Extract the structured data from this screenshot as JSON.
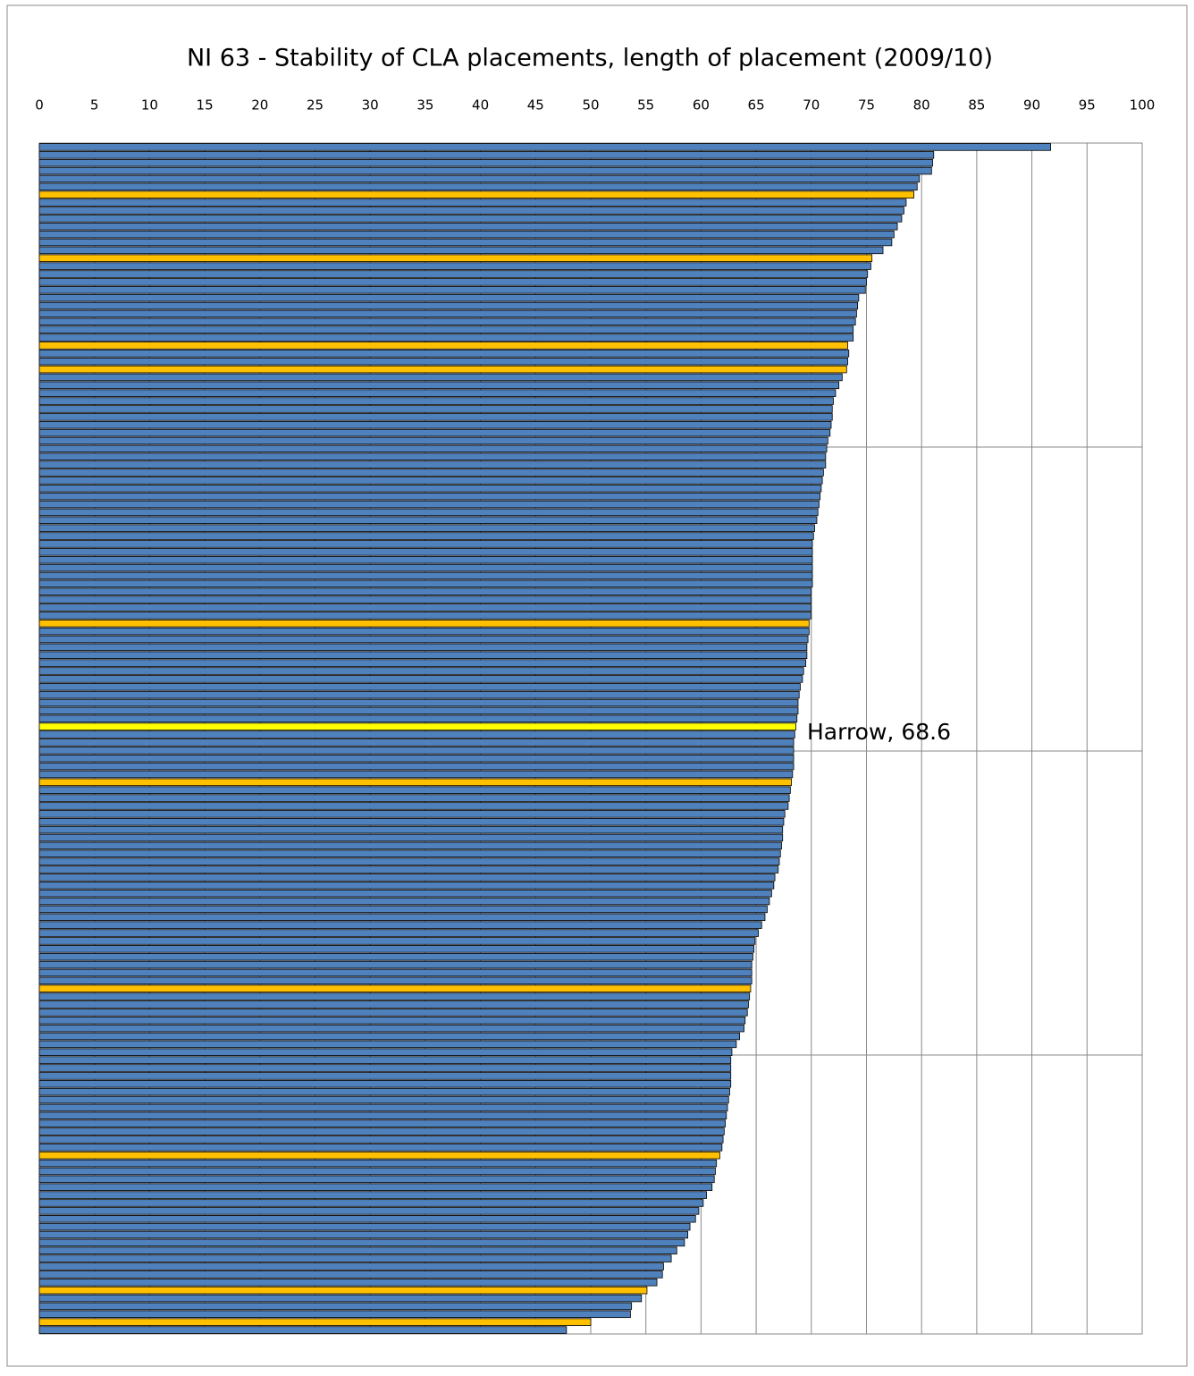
{
  "chart_data": {
    "type": "bar",
    "orientation": "horizontal",
    "title": "NI 63 - Stability of CLA placements, length of placement (2009/10)",
    "annotation": "Harrow, 68.6",
    "categories": [
      null,
      null,
      null,
      null,
      null,
      null,
      null,
      null,
      null,
      null,
      null,
      null,
      null,
      null,
      null,
      null,
      null,
      null,
      null,
      null,
      null,
      null,
      null,
      null,
      null,
      null,
      null,
      null,
      null,
      null,
      null,
      null,
      null,
      null,
      null,
      null,
      null,
      null,
      null,
      null,
      null,
      null,
      null,
      null,
      null,
      null,
      null,
      null,
      null,
      null,
      null,
      null,
      null,
      null,
      null,
      null,
      null,
      null,
      null,
      null,
      null,
      null,
      null,
      null,
      null,
      null,
      null,
      null,
      null,
      null,
      null,
      null,
      null,
      null,
      null,
      null,
      null,
      null,
      null,
      null,
      null,
      null,
      null,
      null,
      null,
      null,
      null,
      null,
      null,
      null,
      null,
      null,
      null,
      null,
      null,
      null,
      null,
      null,
      null,
      null,
      null,
      null,
      null,
      null,
      null,
      null,
      null,
      null,
      null,
      null,
      null,
      null,
      null,
      null,
      null,
      null,
      null,
      null,
      null,
      null,
      null,
      null,
      null,
      null,
      null,
      null,
      null,
      null,
      null,
      null,
      null,
      null,
      null,
      null,
      null,
      null,
      null,
      null,
      null,
      null,
      null,
      null,
      null,
      null,
      null,
      null,
      null,
      null,
      null,
      null
    ],
    "values": [
      91.7,
      81.1,
      81.0,
      80.9,
      79.8,
      79.6,
      79.3,
      78.6,
      78.4,
      78.2,
      77.8,
      77.5,
      77.3,
      76.5,
      75.5,
      75.4,
      75.1,
      75.0,
      74.9,
      74.3,
      74.2,
      74.1,
      74.0,
      73.8,
      73.8,
      73.3,
      73.4,
      73.3,
      73.2,
      72.8,
      72.5,
      72.2,
      72.0,
      71.9,
      71.9,
      71.8,
      71.7,
      71.5,
      71.4,
      71.3,
      71.3,
      71.1,
      71.0,
      70.9,
      70.8,
      70.7,
      70.6,
      70.5,
      70.3,
      70.2,
      70.1,
      70.1,
      70.1,
      70.1,
      70.1,
      70.1,
      70.0,
      70.0,
      70.0,
      70.0,
      69.8,
      69.8,
      69.7,
      69.6,
      69.6,
      69.5,
      69.3,
      69.2,
      69.0,
      68.9,
      68.8,
      68.8,
      68.7,
      68.6,
      68.5,
      68.4,
      68.4,
      68.4,
      68.4,
      68.3,
      68.2,
      68.1,
      68.0,
      67.9,
      67.6,
      67.5,
      67.4,
      67.4,
      67.3,
      67.2,
      67.1,
      67.0,
      66.7,
      66.6,
      66.4,
      66.2,
      66.0,
      65.8,
      65.5,
      65.2,
      64.9,
      64.8,
      64.7,
      64.6,
      64.6,
      64.6,
      64.5,
      64.4,
      64.3,
      64.2,
      64.0,
      63.9,
      63.5,
      63.2,
      62.8,
      62.7,
      62.7,
      62.7,
      62.7,
      62.6,
      62.5,
      62.4,
      62.3,
      62.2,
      62.1,
      62.0,
      61.9,
      61.7,
      61.4,
      61.3,
      61.2,
      61.0,
      60.5,
      60.2,
      59.8,
      59.5,
      59.0,
      58.8,
      58.5,
      57.8,
      57.3,
      56.6,
      56.5,
      56.0,
      55.1,
      54.6,
      53.7,
      53.6,
      50.0,
      47.8
    ],
    "colors": [
      "#4f81bd",
      "#4f81bd",
      "#4f81bd",
      "#4f81bd",
      "#4f81bd",
      "#4f81bd",
      "#ffc000",
      "#4f81bd",
      "#4f81bd",
      "#4f81bd",
      "#4f81bd",
      "#4f81bd",
      "#4f81bd",
      "#4f81bd",
      "#ffc000",
      "#4f81bd",
      "#4f81bd",
      "#4f81bd",
      "#4f81bd",
      "#4f81bd",
      "#4f81bd",
      "#4f81bd",
      "#4f81bd",
      "#4f81bd",
      "#4f81bd",
      "#ffc000",
      "#4f81bd",
      "#4f81bd",
      "#ffc000",
      "#4f81bd",
      "#4f81bd",
      "#4f81bd",
      "#4f81bd",
      "#4f81bd",
      "#4f81bd",
      "#4f81bd",
      "#4f81bd",
      "#4f81bd",
      "#4f81bd",
      "#4f81bd",
      "#4f81bd",
      "#4f81bd",
      "#4f81bd",
      "#4f81bd",
      "#4f81bd",
      "#4f81bd",
      "#4f81bd",
      "#4f81bd",
      "#4f81bd",
      "#4f81bd",
      "#4f81bd",
      "#4f81bd",
      "#4f81bd",
      "#4f81bd",
      "#4f81bd",
      "#4f81bd",
      "#4f81bd",
      "#4f81bd",
      "#4f81bd",
      "#4f81bd",
      "#ffc000",
      "#4f81bd",
      "#4f81bd",
      "#4f81bd",
      "#4f81bd",
      "#4f81bd",
      "#4f81bd",
      "#4f81bd",
      "#4f81bd",
      "#4f81bd",
      "#4f81bd",
      "#4f81bd",
      "#4f81bd",
      "#ffff00",
      "#4f81bd",
      "#4f81bd",
      "#4f81bd",
      "#4f81bd",
      "#4f81bd",
      "#4f81bd",
      "#ffc000",
      "#4f81bd",
      "#4f81bd",
      "#4f81bd",
      "#4f81bd",
      "#4f81bd",
      "#4f81bd",
      "#4f81bd",
      "#4f81bd",
      "#4f81bd",
      "#4f81bd",
      "#4f81bd",
      "#4f81bd",
      "#4f81bd",
      "#4f81bd",
      "#4f81bd",
      "#4f81bd",
      "#4f81bd",
      "#4f81bd",
      "#4f81bd",
      "#4f81bd",
      "#4f81bd",
      "#4f81bd",
      "#4f81bd",
      "#4f81bd",
      "#4f81bd",
      "#ffc000",
      "#4f81bd",
      "#4f81bd",
      "#4f81bd",
      "#4f81bd",
      "#4f81bd",
      "#4f81bd",
      "#4f81bd",
      "#4f81bd",
      "#4f81bd",
      "#4f81bd",
      "#4f81bd",
      "#4f81bd",
      "#4f81bd",
      "#4f81bd",
      "#4f81bd",
      "#4f81bd",
      "#4f81bd",
      "#4f81bd",
      "#4f81bd",
      "#4f81bd",
      "#ffc000",
      "#4f81bd",
      "#4f81bd",
      "#4f81bd",
      "#4f81bd",
      "#4f81bd",
      "#4f81bd",
      "#4f81bd",
      "#4f81bd",
      "#4f81bd",
      "#4f81bd",
      "#4f81bd",
      "#4f81bd",
      "#4f81bd",
      "#4f81bd",
      "#4f81bd",
      "#4f81bd",
      "#ffc000",
      "#4f81bd",
      "#4f81bd",
      "#4f81bd",
      "#ffc000",
      "#4f81bd"
    ],
    "xlim": [
      0,
      100
    ],
    "xticks": [
      0,
      5,
      10,
      15,
      20,
      25,
      30,
      35,
      40,
      45,
      50,
      55,
      60,
      65,
      70,
      75,
      80,
      85,
      90,
      95,
      100
    ],
    "grid": true
  }
}
